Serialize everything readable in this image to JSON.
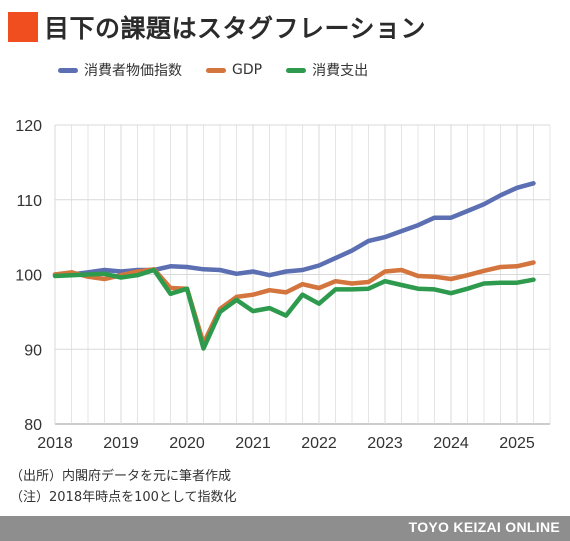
{
  "title": "目下の課題はスタグフレーション",
  "colors": {
    "title_mark": "#f04e1f",
    "grid": "#d9d9d9",
    "axis": "#cfcfcf",
    "footer": "#8e8e8e"
  },
  "chart_data": {
    "type": "line",
    "ylim": [
      80,
      120
    ],
    "yticks": [
      80,
      90,
      100,
      110,
      120
    ],
    "xlim": [
      2018.0,
      2025.5
    ],
    "xticks": [
      2018,
      2019,
      2020,
      2021,
      2022,
      2023,
      2024,
      2025
    ],
    "grid": true,
    "legend_position": "top-left",
    "x": [
      2018.0,
      2018.25,
      2018.5,
      2018.75,
      2019.0,
      2019.25,
      2019.5,
      2019.75,
      2020.0,
      2020.25,
      2020.5,
      2020.75,
      2021.0,
      2021.25,
      2021.5,
      2021.75,
      2022.0,
      2022.25,
      2022.5,
      2022.75,
      2023.0,
      2023.25,
      2023.5,
      2023.75,
      2024.0,
      2024.25,
      2024.5,
      2024.75,
      2025.0,
      2025.25
    ],
    "series": [
      {
        "name": "消費者物価指数",
        "color": "#5b6fb2",
        "values": [
          100.0,
          100.0,
          100.3,
          100.6,
          100.4,
          100.6,
          100.6,
          101.1,
          101.0,
          100.7,
          100.6,
          100.1,
          100.4,
          99.9,
          100.4,
          100.6,
          101.2,
          102.2,
          103.2,
          104.5,
          105.0,
          105.8,
          106.6,
          107.6,
          107.6,
          108.5,
          109.4,
          110.6,
          111.6,
          112.2
        ]
      },
      {
        "name": "GDP",
        "color": "#d3753c",
        "values": [
          100.0,
          100.3,
          99.7,
          99.4,
          99.9,
          100.4,
          100.7,
          98.2,
          98.1,
          90.8,
          95.4,
          97.0,
          97.3,
          97.9,
          97.6,
          98.7,
          98.2,
          99.1,
          98.8,
          99.0,
          100.4,
          100.6,
          99.8,
          99.7,
          99.4,
          99.9,
          100.5,
          101.0,
          101.1,
          101.6
        ]
      },
      {
        "name": "消費支出",
        "color": "#2e9a4d",
        "values": [
          99.8,
          99.9,
          100.0,
          100.1,
          99.6,
          99.9,
          100.6,
          97.4,
          98.1,
          90.1,
          95.0,
          96.6,
          95.1,
          95.5,
          94.5,
          97.3,
          96.1,
          98.0,
          98.0,
          98.1,
          99.1,
          98.6,
          98.1,
          98.0,
          97.5,
          98.1,
          98.8,
          98.9,
          98.9,
          99.3
        ]
      }
    ]
  },
  "notes": [
    "（出所）内閣府データを元に筆者作成",
    "（注）2018年時点を100として指数化"
  ],
  "footer": {
    "credit": "TOYO KEIZAI ONLINE"
  }
}
